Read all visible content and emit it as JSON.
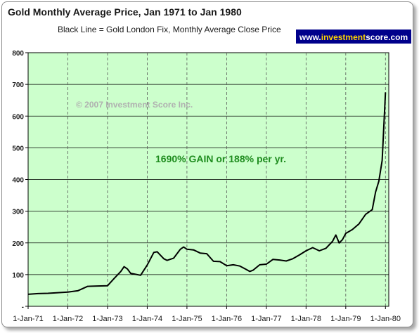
{
  "chart_data": {
    "type": "line",
    "title": "Gold Monthly Average Price, Jan 1971 to Jan 1980",
    "subtitle": "Black Line = Gold London Fix, Monthly Average Close Price",
    "xlabel": "",
    "ylabel": "",
    "ylim": [
      0,
      800
    ],
    "xlim": [
      "1971-01",
      "1980-02"
    ],
    "grid": true,
    "y_ticks": [
      "-",
      "100",
      "200",
      "300",
      "400",
      "500",
      "600",
      "700",
      "800"
    ],
    "x_ticks": [
      "1-Jan-71",
      "1-Jan-72",
      "1-Jan-73",
      "1-Jan-74",
      "1-Jan-75",
      "1-Jan-76",
      "1-Jan-77",
      "1-Jan-78",
      "1-Jan-79",
      "1-Jan-80"
    ],
    "annotations": {
      "copyright": "© 2007 Investment Score Inc.",
      "gain": "1690% GAIN or 188% per yr."
    },
    "brand": {
      "prefix": "www.",
      "highlight": "investment",
      "suffix": "score.com"
    },
    "colors": {
      "plot_background": "#ccffcc",
      "line": "#000000",
      "gain_text": "#1e8c1e",
      "brand_background": "#00008b",
      "brand_highlight": "#ffd500"
    },
    "series": [
      {
        "x": [
          "1971-01",
          "1971-04",
          "1971-07",
          "1971-10",
          "1972-01",
          "1972-04",
          "1972-07",
          "1972-10",
          "1973-01",
          "1973-03",
          "1973-05",
          "1973-06",
          "1973-07",
          "1973-08",
          "1973-09",
          "1973-11",
          "1974-01",
          "1974-03",
          "1974-04",
          "1974-06",
          "1974-07",
          "1974-09",
          "1974-11",
          "1974-12",
          "1975-01",
          "1975-03",
          "1975-05",
          "1975-07",
          "1975-09",
          "1975-11",
          "1976-01",
          "1976-03",
          "1976-05",
          "1976-07",
          "1976-08",
          "1976-09",
          "1976-11",
          "1977-01",
          "1977-03",
          "1977-05",
          "1977-07",
          "1977-09",
          "1977-11",
          "1978-01",
          "1978-03",
          "1978-05",
          "1978-07",
          "1978-09",
          "1978-10",
          "1978-11",
          "1978-12",
          "1979-01",
          "1979-03",
          "1979-05",
          "1979-07",
          "1979-09",
          "1979-10",
          "1979-11",
          "1979-12",
          "1980-01"
        ],
        "y": [
          38,
          40,
          41,
          43,
          45,
          49,
          63,
          64,
          65,
          88,
          110,
          125,
          118,
          104,
          102,
          98,
          130,
          170,
          172,
          150,
          145,
          152,
          180,
          187,
          180,
          178,
          168,
          166,
          142,
          141,
          128,
          131,
          127,
          116,
          110,
          114,
          131,
          133,
          148,
          146,
          143,
          150,
          162,
          175,
          185,
          175,
          183,
          205,
          225,
          200,
          210,
          230,
          242,
          260,
          290,
          305,
          360,
          395,
          460,
          675
        ]
      }
    ]
  }
}
